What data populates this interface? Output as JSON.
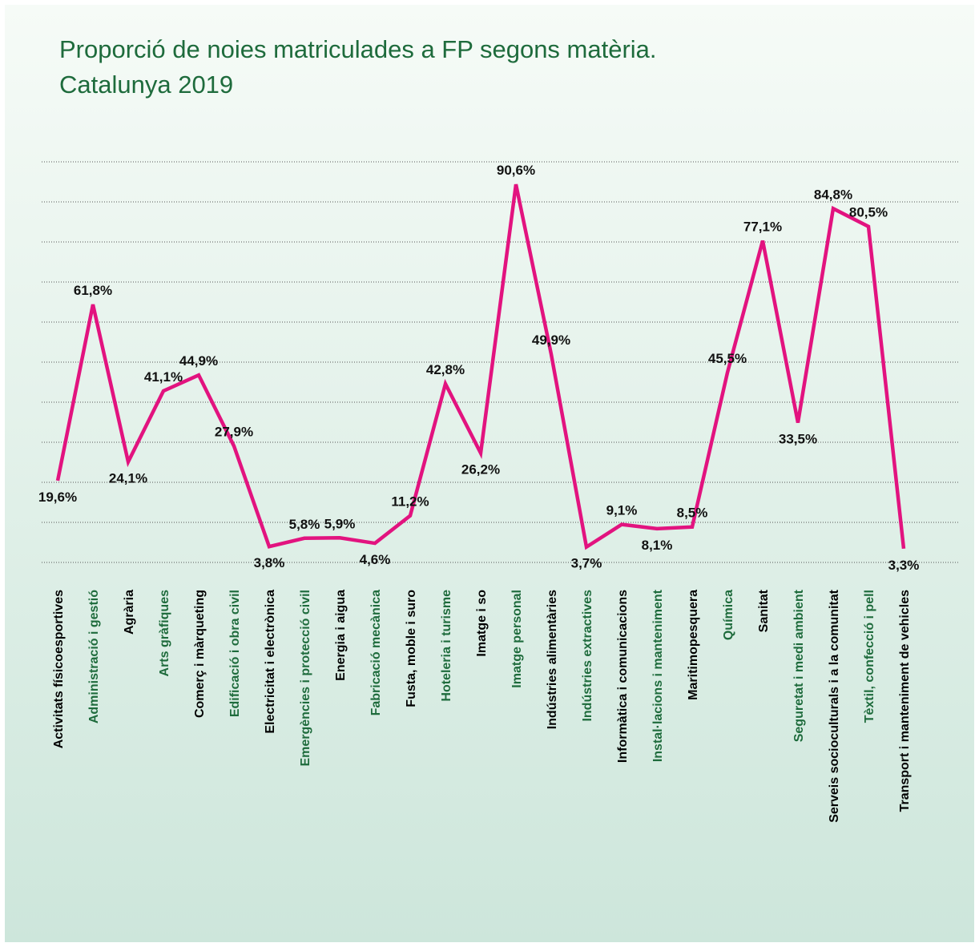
{
  "chart_data": {
    "type": "line",
    "title": "Proporció de noies matriculades a FP segons matèria.",
    "subtitle": "Catalunya 2019",
    "categories": [
      "Activitats físicoesportives",
      "Administració i gestió",
      "Agrària",
      "Arts gràfiques",
      "Comerç i màrqueting",
      "Edificació i obra civil",
      "Electricitat i electrònica",
      "Emergències i protecció civil",
      "Energia i aigua",
      "Fabricació mecànica",
      "Fusta, moble i suro",
      "Hoteleria i turisme",
      "Imatge i so",
      "Imatge personal",
      "Indústries alimentàries",
      "Indústries extractives",
      "Informàtica i comunicacions",
      "Instal·lacions i manteniment",
      "Maritimopesquera",
      "Química",
      "Sanitat",
      "Seguretat i medi ambient",
      "Serveis socioculturals i a la comunitat",
      "Tèxtil, confecció i pell",
      "Transport i manteniment de vehicles"
    ],
    "series": [
      {
        "name": "Noies",
        "color": "#e2137f",
        "values": [
          19.6,
          61.8,
          24.1,
          41.1,
          44.9,
          27.9,
          3.8,
          5.8,
          5.9,
          4.6,
          11.2,
          42.8,
          26.2,
          90.6,
          49.9,
          3.7,
          9.1,
          8.1,
          8.5,
          45.5,
          77.1,
          33.5,
          84.8,
          80.5,
          3.3
        ],
        "value_labels": [
          "19,6%",
          "61,8%",
          "24,1%",
          "41,1%",
          "44,9%",
          "27,9%",
          "3,8%",
          "5,8%",
          "5,9%",
          "4,6%",
          "11,2%",
          "42,8%",
          "26,2%",
          "90,6%",
          "49,9%",
          "3,7%",
          "9,1%",
          "8,1%",
          "8,5%",
          "45,5%",
          "77,1%",
          "33,5%",
          "84,8%",
          "80,5%",
          "3,3%"
        ]
      }
    ],
    "ylim": [
      0,
      96
    ],
    "yticks": [
      0,
      9.6,
      19.2,
      28.8,
      38.4,
      48,
      57.6,
      67.2,
      76.8,
      86.4,
      96
    ],
    "grid": true,
    "label_colors": [
      "#000000",
      "#1e6b3c"
    ]
  }
}
